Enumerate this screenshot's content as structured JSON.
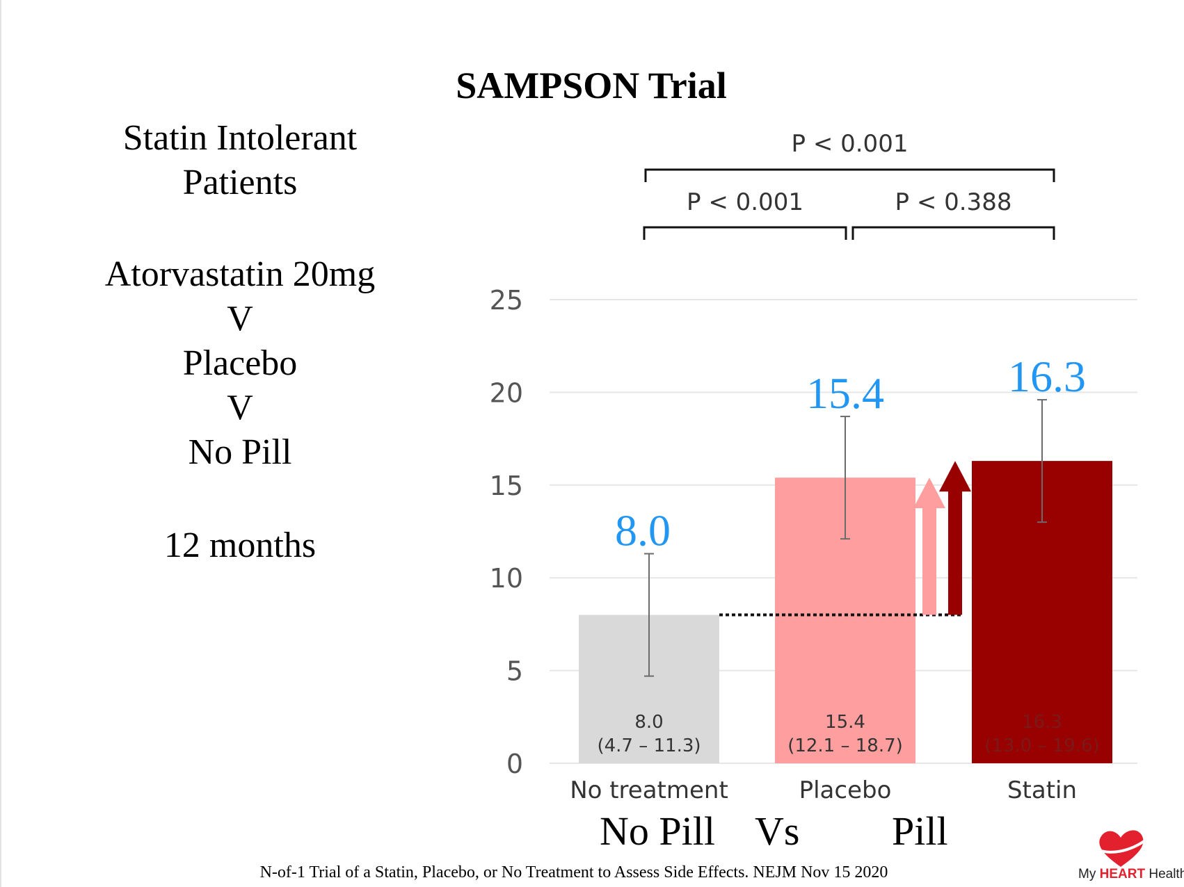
{
  "title": "SAMPSON Trial",
  "side_text": {
    "line1": "Statin Intolerant",
    "line2": "Patients",
    "line3": "Atorvastatin 20mg",
    "line4": "V",
    "line5": "Placebo",
    "line6": "V",
    "line7": "No Pill",
    "line8": "12 months"
  },
  "bottom": {
    "left": "No Pill",
    "middle": "Vs",
    "right": "Pill"
  },
  "citation": "N-of-1 Trial of a Statin, Placebo, or No Treatment to Assess Side Effects. NEJM Nov 15 2020",
  "logo": {
    "icon": "heart-icon",
    "text_prefix": "My ",
    "text_bold": "HEART",
    "text_suffix": " Health",
    "color": "#e3202e"
  },
  "chart_data": {
    "type": "bar",
    "categories": [
      "No treatment",
      "Placebo",
      "Statin"
    ],
    "values": [
      8.0,
      15.4,
      16.3
    ],
    "ci_low": [
      4.7,
      12.1,
      13.0
    ],
    "ci_high": [
      11.3,
      18.7,
      19.6
    ],
    "value_labels": [
      "8.0",
      "15.4",
      "16.3"
    ],
    "ci_labels": [
      "(4.7 – 11.3)",
      "(12.1 – 18.7)",
      "(13.0 – 19.6)"
    ],
    "colors": [
      "#d9d9d9",
      "#ff9e9e",
      "#990000"
    ],
    "inner_text_colors": [
      "#333333",
      "#333333",
      "#7a1a1a"
    ],
    "value_label_color": "#2196f3",
    "ylim": [
      0,
      25
    ],
    "yticks": [
      "0",
      "5",
      "10",
      "15",
      "20",
      "25"
    ],
    "grid": true,
    "baseline_value": 8.0,
    "arrows": [
      {
        "from": 8.0,
        "to": 15.4,
        "color": "#ff9e9e"
      },
      {
        "from": 8.0,
        "to": 16.3,
        "color": "#990000"
      }
    ],
    "comparisons": [
      {
        "label": "P < 0.001",
        "from": "No treatment",
        "to": "Statin"
      },
      {
        "label": "P < 0.001",
        "from": "No treatment",
        "to": "Placebo"
      },
      {
        "label": "P < 0.388",
        "from": "Placebo",
        "to": "Statin"
      }
    ]
  }
}
